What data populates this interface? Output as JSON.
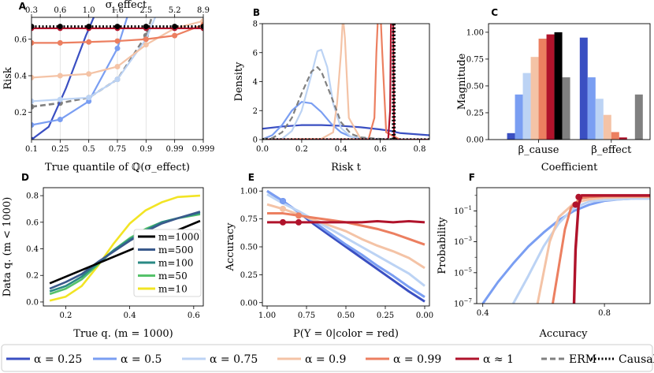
{
  "colors": {
    "a025": "#3a4fc2",
    "a05": "#7a9ef2",
    "a075": "#bcd3f4",
    "a09": "#f4c3a6",
    "a099": "#ec7f60",
    "a1": "#b0132b",
    "erm": "#808080",
    "causal": "#000000",
    "m1000": "#000000",
    "m500": "#3a5a8c",
    "m100": "#2a8a84",
    "m50": "#55c26a",
    "m10": "#f2e424"
  },
  "bottom_legend": [
    {
      "label": "α = 0.25",
      "color_key": "a025",
      "style": "solid"
    },
    {
      "label": "α = 0.5",
      "color_key": "a05",
      "style": "solid"
    },
    {
      "label": "α = 0.75",
      "color_key": "a075",
      "style": "solid"
    },
    {
      "label": "α = 0.9",
      "color_key": "a09",
      "style": "solid"
    },
    {
      "label": "α = 0.99",
      "color_key": "a099",
      "style": "solid"
    },
    {
      "label": "α ≈ 1",
      "color_key": "a1",
      "style": "solid"
    },
    {
      "label": "ERM",
      "color_key": "erm",
      "style": "dashed"
    },
    {
      "label": "Causal",
      "color_key": "causal",
      "style": "dotted"
    }
  ],
  "chart_data": [
    {
      "panel": "A",
      "type": "line",
      "xlabel": "True quantile of ℚ(σ_effect)",
      "ylabel": "Risk",
      "top_axis_label": "σ_effect",
      "x_ticks": [
        "0.1",
        "0.25",
        "0.5",
        "0.75",
        "0.9",
        "0.99",
        "0.999"
      ],
      "top_ticks": [
        "0.3",
        "0.6",
        "1.0",
        "1.6",
        "2.5",
        "5.2",
        "8.9"
      ],
      "y_ticks": [
        0.2,
        0.4,
        0.6
      ],
      "ylim": [
        0.05,
        0.72
      ],
      "series": [
        {
          "name": "α = 0.25",
          "color_key": "a025",
          "x": [
            0,
            0.6,
            1.2,
            1.9,
            2.8
          ],
          "y": [
            0.05,
            0.12,
            0.33,
            0.62,
            0.95
          ]
        },
        {
          "name": "α = 0.5",
          "color_key": "a05",
          "x": [
            0,
            1,
            2,
            3,
            3.5
          ],
          "y": [
            0.13,
            0.16,
            0.26,
            0.55,
            0.8
          ]
        },
        {
          "name": "α = 0.75",
          "color_key": "a075",
          "x": [
            0,
            1,
            2,
            3,
            4,
            4.4
          ],
          "y": [
            0.26,
            0.27,
            0.28,
            0.38,
            0.6,
            0.75
          ]
        },
        {
          "name": "α = 0.9",
          "color_key": "a09",
          "x": [
            0,
            1,
            2,
            3,
            4,
            5,
            6
          ],
          "y": [
            0.39,
            0.4,
            0.41,
            0.45,
            0.57,
            0.66,
            0.7
          ]
        },
        {
          "name": "α = 0.99",
          "color_key": "a099",
          "x": [
            0,
            1,
            2,
            3,
            4,
            5,
            6
          ],
          "y": [
            0.58,
            0.58,
            0.585,
            0.59,
            0.6,
            0.62,
            0.68
          ]
        },
        {
          "name": "α ≈ 1",
          "color_key": "a1",
          "x": [
            0,
            1,
            2,
            3,
            4,
            5,
            6
          ],
          "y": [
            0.66,
            0.66,
            0.66,
            0.66,
            0.66,
            0.66,
            0.66
          ]
        },
        {
          "name": "ERM",
          "color_key": "erm",
          "x": [
            0,
            1,
            2,
            3,
            4,
            4.2
          ],
          "y": [
            0.23,
            0.25,
            0.28,
            0.38,
            0.62,
            0.72
          ]
        },
        {
          "name": "Causal",
          "color_key": "causal",
          "x": [
            0,
            1,
            2,
            3,
            4,
            5,
            6
          ],
          "y": [
            0.67,
            0.67,
            0.67,
            0.67,
            0.67,
            0.67,
            0.67
          ]
        }
      ]
    },
    {
      "panel": "B",
      "type": "line",
      "xlabel": "Risk t",
      "ylabel": "Density",
      "x_ticks": [
        0.0,
        0.2,
        0.4,
        0.6,
        0.8
      ],
      "y_ticks": [
        0,
        2,
        4,
        6,
        8
      ],
      "xlim": [
        0,
        0.85
      ],
      "ylim": [
        0,
        8
      ],
      "series": [
        {
          "name": "α = 0.25",
          "color_key": "a025",
          "x": [
            0,
            0.1,
            0.2,
            0.3,
            0.4,
            0.5,
            0.6,
            0.65,
            0.7,
            0.85
          ],
          "y": [
            0.75,
            0.9,
            1.0,
            1.0,
            0.95,
            0.85,
            0.7,
            0.6,
            0.45,
            0.3
          ]
        },
        {
          "name": "α = 0.5",
          "color_key": "a05",
          "x": [
            0,
            0.05,
            0.1,
            0.15,
            0.2,
            0.25,
            0.3,
            0.35,
            0.4,
            0.45,
            0.5,
            0.55,
            0.6,
            0.65
          ],
          "y": [
            0.02,
            0.3,
            1.0,
            2.0,
            2.6,
            2.5,
            1.9,
            1.1,
            0.5,
            0.2,
            0.1,
            0.05,
            0.03,
            0.02
          ]
        },
        {
          "name": "α = 0.75",
          "color_key": "a075",
          "x": [
            0,
            0.1,
            0.15,
            0.2,
            0.25,
            0.28,
            0.3,
            0.33,
            0.36,
            0.4,
            0.45,
            0.6,
            0.8
          ],
          "y": [
            0,
            0.05,
            0.6,
            2.0,
            4.5,
            6.1,
            6.2,
            5.0,
            2.5,
            0.8,
            0.2,
            0.02,
            0
          ]
        },
        {
          "name": "α = 0.9",
          "color_key": "a09",
          "x": [
            0,
            0.3,
            0.36,
            0.38,
            0.4,
            0.41,
            0.42,
            0.44,
            0.5
          ],
          "y": [
            0,
            0.05,
            0.5,
            2.5,
            6.0,
            8.5,
            7.0,
            1.5,
            0.05
          ]
        },
        {
          "name": "α = 0.99",
          "color_key": "a099",
          "x": [
            0,
            0.54,
            0.57,
            0.58,
            0.59,
            0.6,
            0.61,
            0.63,
            0.7
          ],
          "y": [
            0,
            0.02,
            1.5,
            6.0,
            9.0,
            9.0,
            6.0,
            0.5,
            0
          ]
        },
        {
          "name": "α ≈ 1",
          "color_key": "a1",
          "x": [
            0,
            0.64,
            0.65,
            0.655,
            0.66,
            0.665,
            0.67,
            0.85
          ],
          "y": [
            0,
            0,
            2.0,
            9.0,
            9.0,
            9.0,
            0,
            0
          ]
        },
        {
          "name": "ERM",
          "color_key": "erm",
          "x": [
            0,
            0.05,
            0.1,
            0.15,
            0.2,
            0.25,
            0.28,
            0.3,
            0.35,
            0.4,
            0.45,
            0.5,
            0.6,
            0.66
          ],
          "y": [
            0.05,
            0.1,
            0.5,
            1.5,
            3.2,
            4.7,
            5.0,
            4.7,
            3.0,
            1.2,
            0.4,
            0.15,
            0.05,
            0.02
          ]
        },
        {
          "name": "Causal",
          "color_key": "causal",
          "x": [
            0,
            0.665,
            0.666,
            0.671,
            0.672,
            0.85
          ],
          "y": [
            0,
            0,
            9.0,
            9.0,
            0,
            0
          ]
        }
      ]
    },
    {
      "panel": "C",
      "type": "bar",
      "xlabel": "Coefficient",
      "ylabel": "Magnitude",
      "categories": [
        "β_cause",
        "β_effect"
      ],
      "y_ticks": [
        0.0,
        0.25,
        0.5,
        0.75,
        1.0
      ],
      "ylim": [
        0,
        1.08
      ],
      "series": [
        {
          "name": "α = 0.25",
          "color_key": "a025",
          "values": [
            0.06,
            0.95
          ]
        },
        {
          "name": "α = 0.5",
          "color_key": "a05",
          "values": [
            0.42,
            0.58
          ]
        },
        {
          "name": "α = 0.75",
          "color_key": "a075",
          "values": [
            0.62,
            0.38
          ]
        },
        {
          "name": "α = 0.9",
          "color_key": "a09",
          "values": [
            0.77,
            0.23
          ]
        },
        {
          "name": "α = 0.99",
          "color_key": "a099",
          "values": [
            0.94,
            0.07
          ]
        },
        {
          "name": "α ≈ 1",
          "color_key": "a1",
          "values": [
            0.98,
            0.02
          ]
        },
        {
          "name": "Causal",
          "color_key": "causal",
          "values": [
            1.0,
            0.0
          ]
        },
        {
          "name": "ERM",
          "color_key": "erm",
          "values": [
            0.58,
            0.42
          ]
        }
      ]
    },
    {
      "panel": "D",
      "type": "line",
      "xlabel": "True q. (m = 1000)",
      "ylabel": "Data q. (m < 1000)",
      "x_ticks": [
        0.2,
        0.4,
        0.6
      ],
      "y_ticks": [
        0.0,
        0.2,
        0.4,
        0.6,
        0.8
      ],
      "xlim": [
        0.13,
        0.63
      ],
      "ylim": [
        -0.03,
        0.86
      ],
      "legend": [
        "m=1000",
        "m=500",
        "m=100",
        "m=50",
        "m=10"
      ],
      "series": [
        {
          "name": "m=1000",
          "color_key": "m1000",
          "x": [
            0.15,
            0.62
          ],
          "y": [
            0.14,
            0.61
          ]
        },
        {
          "name": "m=500",
          "color_key": "m500",
          "x": [
            0.15,
            0.2,
            0.25,
            0.3,
            0.35,
            0.4,
            0.45,
            0.5,
            0.55,
            0.62
          ],
          "y": [
            0.1,
            0.15,
            0.21,
            0.3,
            0.38,
            0.46,
            0.53,
            0.59,
            0.63,
            0.68
          ]
        },
        {
          "name": "m=100",
          "color_key": "m100",
          "x": [
            0.15,
            0.2,
            0.25,
            0.3,
            0.35,
            0.4,
            0.45,
            0.5,
            0.55,
            0.62
          ],
          "y": [
            0.08,
            0.12,
            0.19,
            0.29,
            0.39,
            0.47,
            0.54,
            0.6,
            0.63,
            0.67
          ]
        },
        {
          "name": "m=50",
          "color_key": "m50",
          "x": [
            0.15,
            0.2,
            0.25,
            0.3,
            0.35,
            0.4,
            0.45,
            0.5,
            0.55,
            0.62
          ],
          "y": [
            0.06,
            0.1,
            0.17,
            0.28,
            0.39,
            0.48,
            0.55,
            0.6,
            0.63,
            0.66
          ]
        },
        {
          "name": "m=10",
          "color_key": "m10",
          "x": [
            0.15,
            0.2,
            0.25,
            0.3,
            0.35,
            0.4,
            0.45,
            0.5,
            0.55,
            0.62
          ],
          "y": [
            0.01,
            0.04,
            0.12,
            0.27,
            0.44,
            0.59,
            0.69,
            0.75,
            0.79,
            0.8
          ]
        }
      ]
    },
    {
      "panel": "E",
      "type": "line",
      "xlabel": "P(Y = 0|color = red)",
      "ylabel": "Accuracy",
      "x_ticks": [
        "1.00",
        "0.75",
        "0.50",
        "0.25",
        "0.00"
      ],
      "y_ticks": [
        "0.00",
        "0.25",
        "0.50",
        "0.75",
        "1.00"
      ],
      "xlim": [
        1.03,
        -0.03
      ],
      "ylim": [
        -0.03,
        1.03
      ],
      "series": [
        {
          "name": "α = 0.25",
          "color_key": "a025",
          "x": [
            1.0,
            0.9,
            0.8,
            0.7,
            0.6,
            0.5,
            0.4,
            0.3,
            0.2,
            0.1,
            0.0
          ],
          "y": [
            1.0,
            0.91,
            0.81,
            0.7,
            0.6,
            0.5,
            0.4,
            0.3,
            0.2,
            0.1,
            0.01
          ]
        },
        {
          "name": "α = 0.5",
          "color_key": "a05",
          "x": [
            1.0,
            0.9,
            0.8,
            0.7,
            0.6,
            0.5,
            0.4,
            0.3,
            0.2,
            0.1,
            0.0
          ],
          "y": [
            1.0,
            0.91,
            0.81,
            0.72,
            0.62,
            0.52,
            0.43,
            0.33,
            0.24,
            0.14,
            0.05
          ]
        },
        {
          "name": "α = 0.75",
          "color_key": "a075",
          "x": [
            1.0,
            0.9,
            0.8,
            0.7,
            0.6,
            0.5,
            0.4,
            0.3,
            0.2,
            0.1,
            0.0
          ],
          "y": [
            0.97,
            0.89,
            0.82,
            0.74,
            0.66,
            0.58,
            0.5,
            0.42,
            0.34,
            0.26,
            0.15
          ]
        },
        {
          "name": "α = 0.9",
          "color_key": "a09",
          "x": [
            1.0,
            0.9,
            0.8,
            0.7,
            0.6,
            0.5,
            0.4,
            0.3,
            0.2,
            0.1,
            0.0
          ],
          "y": [
            0.88,
            0.84,
            0.79,
            0.74,
            0.69,
            0.64,
            0.57,
            0.51,
            0.46,
            0.4,
            0.31
          ]
        },
        {
          "name": "α = 0.99",
          "color_key": "a099",
          "x": [
            1.0,
            0.9,
            0.8,
            0.7,
            0.6,
            0.5,
            0.4,
            0.3,
            0.2,
            0.1,
            0.0
          ],
          "y": [
            0.8,
            0.8,
            0.78,
            0.76,
            0.74,
            0.72,
            0.69,
            0.66,
            0.62,
            0.57,
            0.52
          ]
        },
        {
          "name": "α ≈ 1",
          "color_key": "a1",
          "x": [
            1.0,
            0.9,
            0.8,
            0.7,
            0.6,
            0.5,
            0.4,
            0.3,
            0.2,
            0.1,
            0.0
          ],
          "y": [
            0.72,
            0.72,
            0.72,
            0.72,
            0.72,
            0.72,
            0.72,
            0.73,
            0.72,
            0.73,
            0.72
          ]
        }
      ]
    },
    {
      "panel": "F",
      "type": "line",
      "scale": "log-y",
      "xlabel": "Accuracy",
      "ylabel": "Probability",
      "x_ticks": [
        "0.4",
        "0.8"
      ],
      "y_ticks": [
        "10^-7",
        "10^-5",
        "10^-3",
        "10^-1"
      ],
      "xlim": [
        0.38,
        0.95
      ],
      "ylim_log10": [
        -7,
        0.5
      ],
      "series": [
        {
          "name": "α = 0.5",
          "color_key": "a05",
          "x": [
            0.4,
            0.45,
            0.5,
            0.55,
            0.6,
            0.65,
            0.7,
            0.75,
            0.8,
            0.85,
            0.9,
            0.95
          ],
          "log10y": [
            -7.0,
            -5.6,
            -4.4,
            -3.3,
            -2.4,
            -1.6,
            -1.0,
            -0.6,
            -0.35,
            -0.25,
            -0.2,
            -0.2
          ]
        },
        {
          "name": "α = 0.75",
          "color_key": "a075",
          "x": [
            0.5,
            0.55,
            0.6,
            0.65,
            0.7,
            0.75,
            0.8,
            0.85,
            0.9,
            0.95
          ],
          "log10y": [
            -7.0,
            -5.2,
            -3.3,
            -1.8,
            -0.8,
            -0.4,
            -0.3,
            -0.25,
            -0.2,
            -0.2
          ]
        },
        {
          "name": "α = 0.9",
          "color_key": "a09",
          "x": [
            0.58,
            0.6,
            0.62,
            0.65,
            0.7,
            0.75,
            0.8,
            0.9,
            0.95
          ],
          "log10y": [
            -7.0,
            -5.0,
            -3.0,
            -1.4,
            -0.5,
            -0.25,
            -0.15,
            -0.1,
            -0.1
          ]
        },
        {
          "name": "α = 0.99",
          "color_key": "a099",
          "x": [
            0.63,
            0.65,
            0.67,
            0.69,
            0.72,
            0.75,
            0.8,
            0.95
          ],
          "log10y": [
            -7.0,
            -4.6,
            -2.2,
            -0.8,
            -0.2,
            -0.1,
            -0.05,
            -0.05
          ]
        },
        {
          "name": "α ≈ 1",
          "color_key": "a1",
          "x": [
            0.7,
            0.705,
            0.715,
            0.72,
            0.725,
            0.74,
            0.95
          ],
          "log10y": [
            -7.0,
            -3.5,
            -0.6,
            -0.3,
            0.0,
            0.0,
            0.0
          ]
        }
      ]
    }
  ]
}
